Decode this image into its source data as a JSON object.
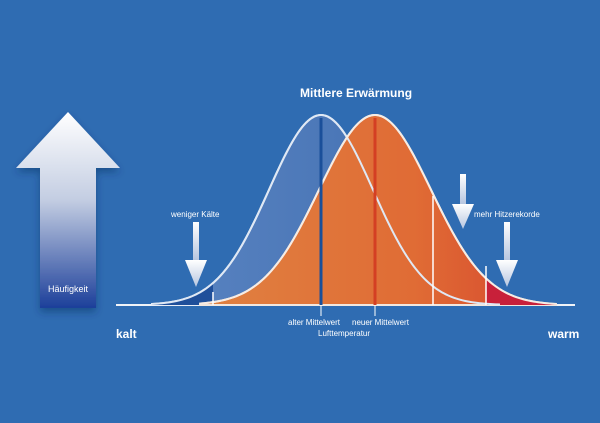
{
  "diagram": {
    "title": "Mittlere Erwärmung",
    "axis": {
      "left_label": "kalt",
      "right_label": "warm",
      "center_label": "Lufttemperatur"
    },
    "frequency_arrow": {
      "label": "Häufigkeit"
    },
    "annotations": {
      "less_cold": "weniger Kälte",
      "more_heat_records": "mehr Hitzerekorde",
      "old_mean": "alter Mittelwert",
      "new_mean": "neuer Mittelwert"
    },
    "colors": {
      "background": "#2f6cb2",
      "old_distribution": "#4a78b4",
      "new_distribution": "#e87a3a",
      "cold_tail": "#1f4f9a",
      "hot_tail": "#c8203a",
      "old_mean_line": "#1a4f9a",
      "new_mean_line": "#d43f23"
    },
    "icons": [
      "frequency-up-arrow-icon",
      "down-arrow-icon"
    ]
  }
}
